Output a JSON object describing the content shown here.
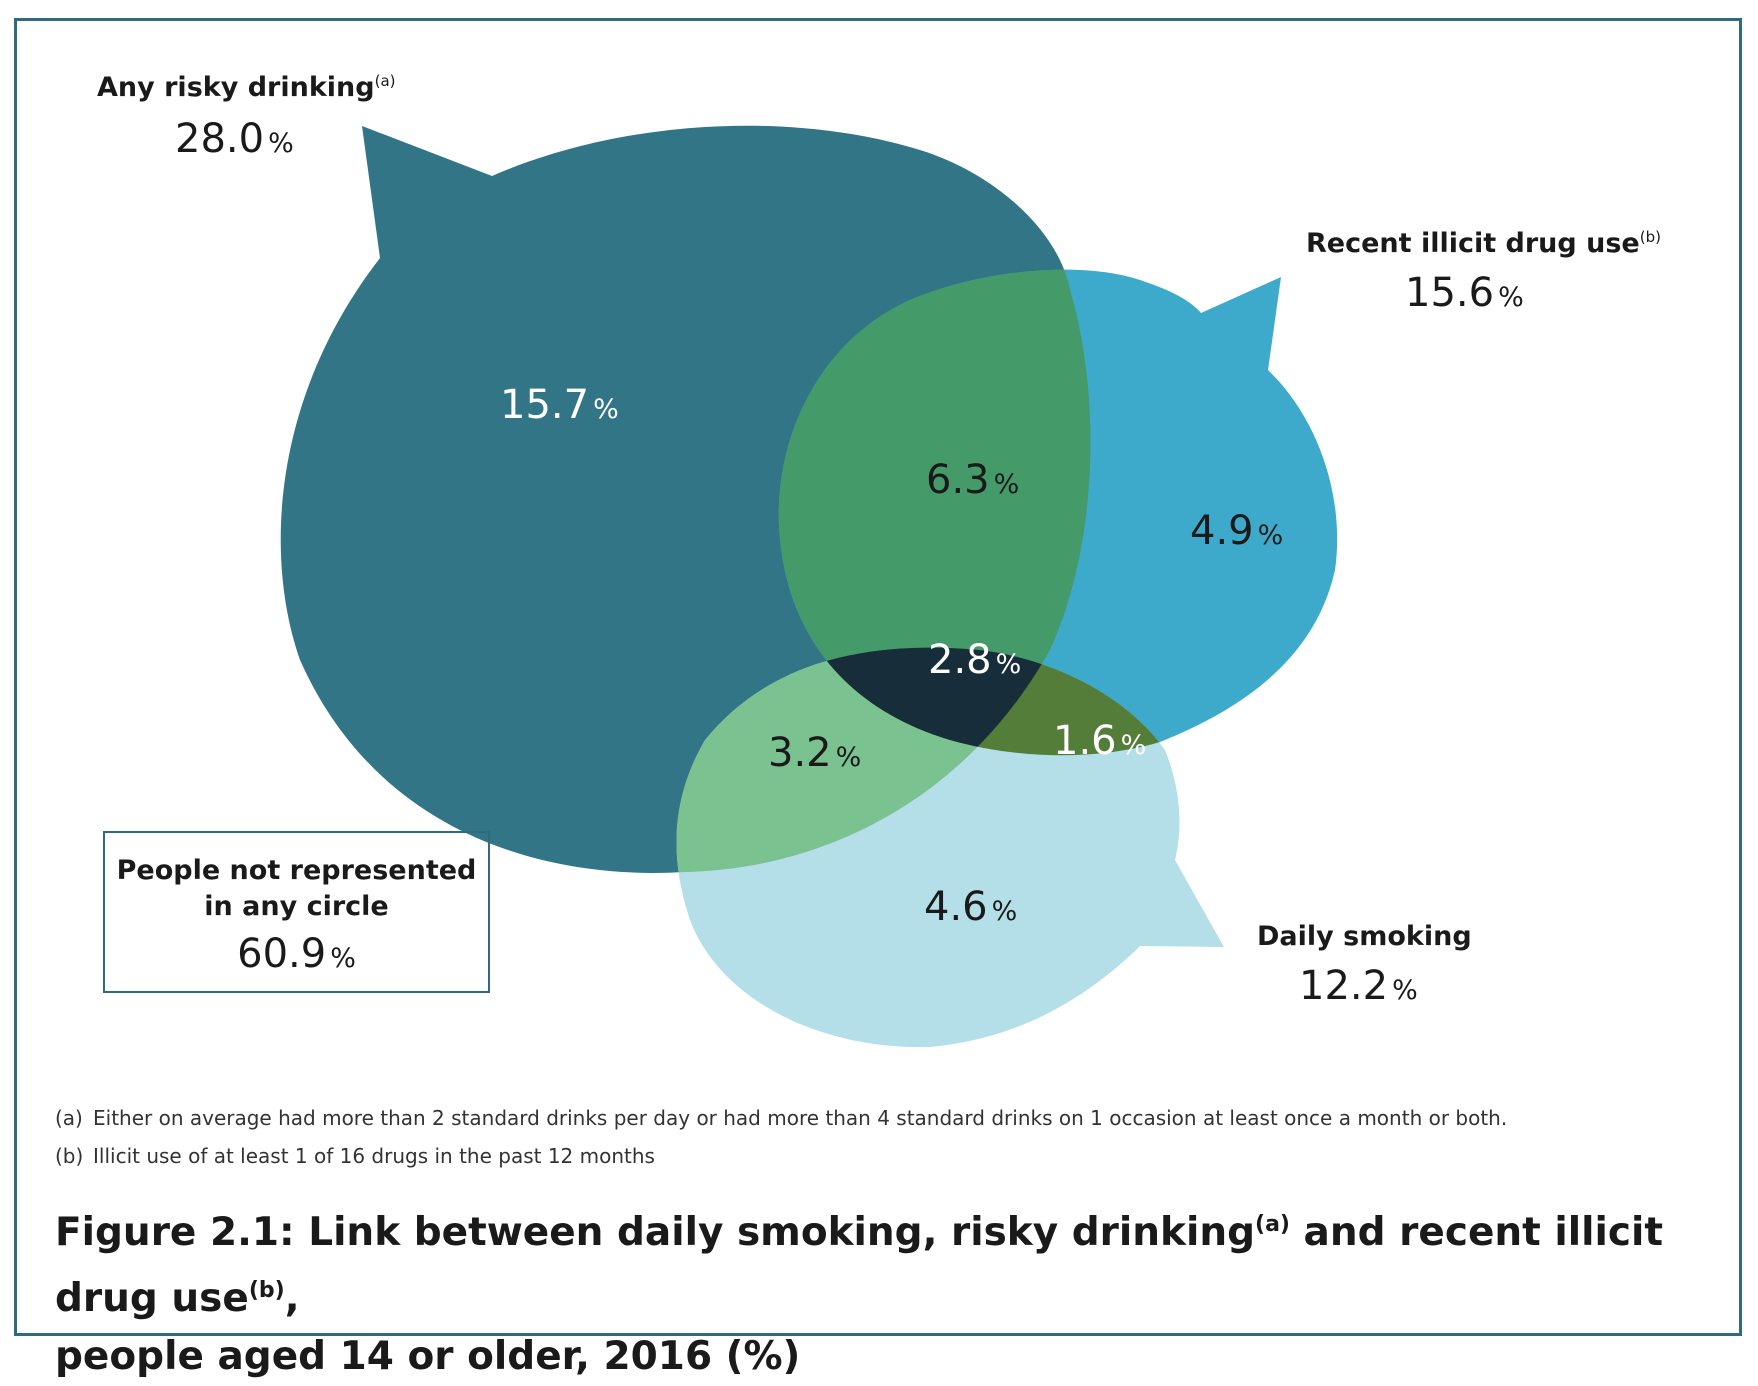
{
  "chart_data": {
    "type": "venn",
    "title": "Figure 2.1: Link between daily smoking, risky drinking and recent illicit drug use, people aged 14 or older, 2016 (%)",
    "sets": [
      {
        "id": "risky",
        "label": "Any risky drinking",
        "note_ref": "(a)",
        "total": "28.0",
        "color": "#327587"
      },
      {
        "id": "illicit",
        "label": "Recent illicit drug use",
        "note_ref": "(b)",
        "total": "15.6",
        "color": "#3daacc"
      },
      {
        "id": "smoking",
        "label": "Daily smoking",
        "note_ref": "",
        "total": "12.2",
        "color": "#b4dfe8"
      }
    ],
    "regions": {
      "risky_only": "15.7",
      "illicit_only": "4.9",
      "smoking_only": "4.6",
      "risky_illicit": "6.3",
      "risky_smoking": "3.2",
      "illicit_smoking": "1.6",
      "all_three": "2.8"
    },
    "intersection_colors": {
      "risky_illicit": "#449a68",
      "risky_smoking": "#7ac290",
      "illicit_smoking": "#547d39",
      "all_three": "#172e3a"
    },
    "outside": {
      "label": "People not represented in any circle",
      "value": "60.9"
    },
    "unit": "%"
  },
  "notes": [
    {
      "key": "(a)",
      "text": "Either on average had more than 2 standard drinks per day or had more than 4 standard drinks on 1 occasion at least once a month or both."
    },
    {
      "key": "(b)",
      "text": "Illicit use of at least 1 of 16 drugs in the past 12 months"
    }
  ],
  "caption": {
    "part1": "Figure 2.1: Link between daily smoking, risky drinking",
    "sup1": "(a)",
    "part2": " and recent illicit drug use",
    "sup2": "(b)",
    "part3": ",",
    "line2": "people aged 14 or older, 2016 (%)"
  }
}
